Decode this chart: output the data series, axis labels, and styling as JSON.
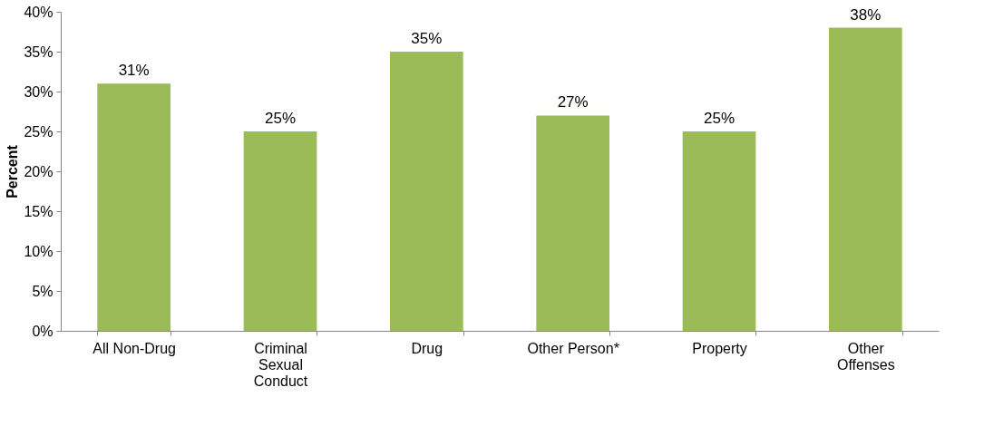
{
  "chart_data": {
    "type": "bar",
    "ylabel": "Percent",
    "categories": [
      "All Non-Drug",
      "Criminal Sexual Conduct",
      "Drug",
      "Other Person*",
      "Property",
      "Other Offenses"
    ],
    "values": [
      31,
      25,
      35,
      27,
      25,
      38
    ],
    "value_labels": [
      "31%",
      "25%",
      "35%",
      "27%",
      "25%",
      "38%"
    ],
    "color": "#9bbb59",
    "ylim": [
      0,
      40
    ],
    "yticks": [
      {
        "value": 0,
        "label": "0%"
      },
      {
        "value": 5,
        "label": "5%"
      },
      {
        "value": 10,
        "label": "10%"
      },
      {
        "value": 15,
        "label": "15%"
      },
      {
        "value": 20,
        "label": "20%"
      },
      {
        "value": 25,
        "label": "25%"
      },
      {
        "value": 30,
        "label": "30%"
      },
      {
        "value": 35,
        "label": "35%"
      },
      {
        "value": 40,
        "label": "40%"
      }
    ],
    "grid": false
  }
}
